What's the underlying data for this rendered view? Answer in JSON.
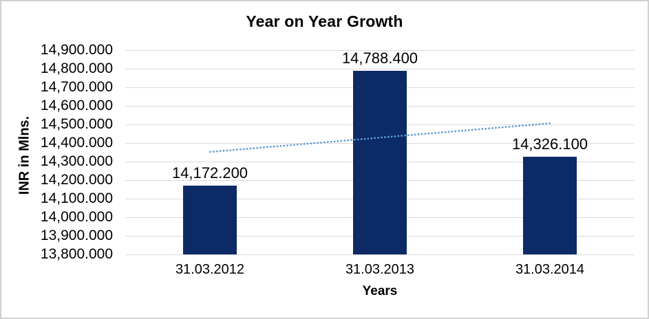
{
  "frame": {
    "border_color": "#d1d1d1",
    "background": "#ffffff"
  },
  "chart_data": {
    "type": "bar",
    "title": "Year on Year Growth",
    "xlabel": "Years",
    "ylabel": "INR in Mlns.",
    "categories": [
      "31.03.2012",
      "31.03.2013",
      "31.03.2014"
    ],
    "values": [
      14172.2,
      14788.4,
      14326.1
    ],
    "data_labels": [
      "14,172.200",
      "14,788.400",
      "14,326.100"
    ],
    "ylim": [
      13800,
      14900
    ],
    "ytick_step": 100,
    "ytick_labels": [
      "14,900.000",
      "14,800.000",
      "14,700.000",
      "14,600.000",
      "14,500.000",
      "14,400.000",
      "14,300.000",
      "14,200.000",
      "14,100.000",
      "14,000.000",
      "13,900.000",
      "13,800.000"
    ],
    "grid": true,
    "legend": "none",
    "bar_color": "#0b2a66",
    "gridline_color": "#d9d9d9",
    "text_color": "#000000",
    "trendline": {
      "type": "linear",
      "style": "dotted",
      "color": "#5b9bd5",
      "start_value": 14352,
      "end_value": 14506
    }
  }
}
